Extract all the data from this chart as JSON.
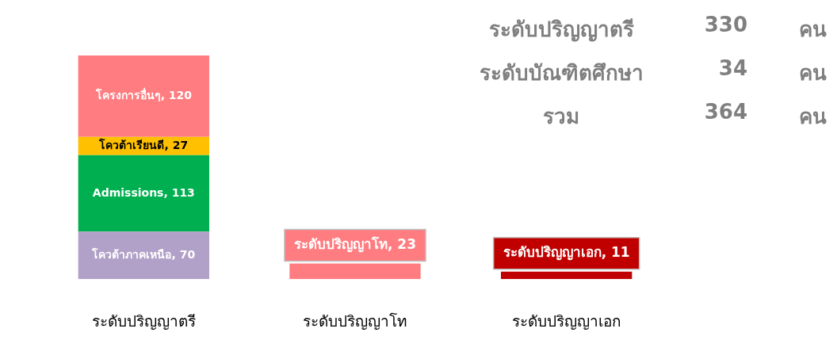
{
  "chart_data": {
    "type": "bar",
    "stacked": true,
    "categories": [
      "ระดับปริญญาตรี",
      "ระดับปริญญาโท",
      "ระดับปริญญาเอก"
    ],
    "series": [
      {
        "color": "#b1a0c7",
        "values": [
          70,
          null,
          null
        ],
        "value_labels": [
          "โควต้าภาคเหนือ, 70",
          null,
          null
        ]
      },
      {
        "color": "#00b050",
        "values": [
          113,
          null,
          null
        ],
        "value_labels": [
          "Admissions, 113",
          null,
          null
        ]
      },
      {
        "color": "#ffc000",
        "values": [
          27,
          null,
          null
        ],
        "value_labels": [
          "โควต้าเรียนดี, 27",
          null,
          null
        ]
      },
      {
        "color": "#ff7c80",
        "values": [
          120,
          null,
          null
        ],
        "value_labels": [
          "โครงการอื่นๆ, 120",
          null,
          null
        ]
      },
      {
        "colors": [
          null,
          "#ff7c80",
          "#c00000"
        ],
        "values": [
          null,
          23,
          11
        ],
        "value_labels": [
          null,
          "ระดับปริญญาโท, 23",
          "ระดับปริญญาเอก, 11"
        ]
      }
    ],
    "legend": false,
    "grid": false,
    "tick_labels": "x",
    "annotations": [
      "ระดับปริญญาตรี",
      "330",
      "คน",
      "ระดับบัณฑิตศึกษา",
      "34",
      "คน",
      "รวม",
      "364",
      "คน"
    ]
  }
}
